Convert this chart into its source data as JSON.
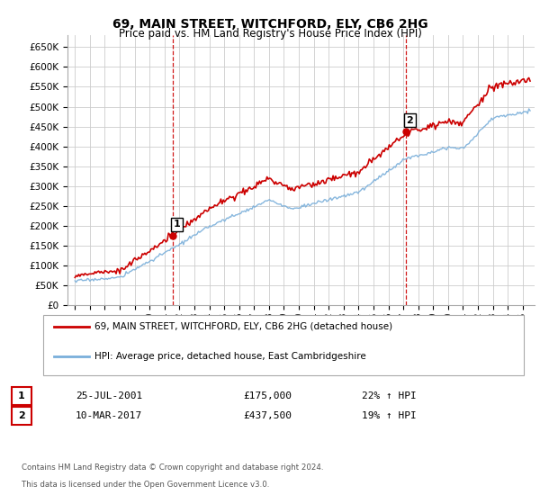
{
  "title": "69, MAIN STREET, WITCHFORD, ELY, CB6 2HG",
  "subtitle": "Price paid vs. HM Land Registry's House Price Index (HPI)",
  "legend_line1": "69, MAIN STREET, WITCHFORD, ELY, CB6 2HG (detached house)",
  "legend_line2": "HPI: Average price, detached house, East Cambridgeshire",
  "sale1_label": "1",
  "sale1_date": "25-JUL-2001",
  "sale1_price": "£175,000",
  "sale1_hpi": "22% ↑ HPI",
  "sale1_year": 2001.56,
  "sale1_value": 175000,
  "sale2_label": "2",
  "sale2_date": "10-MAR-2017",
  "sale2_price": "£437,500",
  "sale2_hpi": "19% ↑ HPI",
  "sale2_year": 2017.19,
  "sale2_value": 437500,
  "red_color": "#cc0000",
  "blue_color": "#7aafda",
  "dashed_vline_color": "#cc0000",
  "background_color": "#ffffff",
  "grid_color": "#cccccc",
  "ylim_min": 0,
  "ylim_max": 680000,
  "footnote1": "Contains HM Land Registry data © Crown copyright and database right 2024.",
  "footnote2": "This data is licensed under the Open Government Licence v3.0."
}
